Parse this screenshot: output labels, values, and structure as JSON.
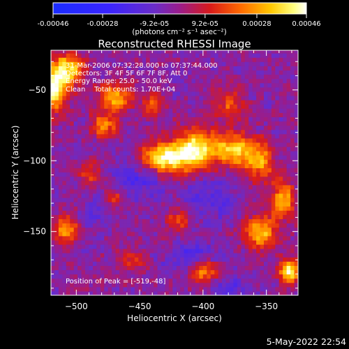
{
  "chart_data": {
    "type": "heatmap",
    "title": "Reconstructed RHESSI Image",
    "xlabel": "Heliocentric X (arcsec)",
    "ylabel": "Heliocentric Y (arcsec)",
    "xlim": [
      -520,
      -325
    ],
    "ylim": [
      -195,
      -22
    ],
    "xticks": [
      -500,
      -450,
      -400,
      -350
    ],
    "yticks": [
      -50,
      -100,
      -150
    ],
    "grid": false,
    "colorbar": {
      "position": "top",
      "range": [
        -0.00046,
        0.00046
      ],
      "tick_values": [
        -0.00046,
        -0.00028,
        -9.2e-05,
        9.2e-05,
        0.00028,
        0.00046
      ],
      "tick_labels": [
        "-0.00046",
        "-0.00028",
        "-9.2e-05",
        "9.2e-05",
        "0.00028",
        "0.00046"
      ],
      "unit_label": "(photons cm⁻² s⁻¹ asec⁻²)",
      "colormap": "blue-purple-red-yellow-white"
    },
    "annotations": [
      "31-Mar-2006 07:32:28.000 to 07:37:44.000",
      "Detectors: 3F 4F 5F 6F 7F 8F, Att 0",
      "Energy Range: 25.0 - 50.0 keV",
      "Clean    Total counts: 1.70E+04"
    ],
    "peak_text": "Position of Peak = [-519,-48]",
    "peak": {
      "x": -519,
      "y": -48
    },
    "sources": [
      {
        "x": -519,
        "y": -48,
        "sx": 8,
        "sy": 12,
        "amp": 1.0
      },
      {
        "x": -505,
        "y": -35,
        "sx": 8,
        "sy": 8,
        "amp": 0.75
      },
      {
        "x": -470,
        "y": -55,
        "sx": 9,
        "sy": 7,
        "amp": 0.7
      },
      {
        "x": -478,
        "y": -75,
        "sx": 7,
        "sy": 6,
        "amp": 0.55
      },
      {
        "x": -440,
        "y": -60,
        "sx": 6,
        "sy": 6,
        "amp": 0.45
      },
      {
        "x": -430,
        "y": -98,
        "sx": 13,
        "sy": 8,
        "amp": 0.95
      },
      {
        "x": -405,
        "y": -92,
        "sx": 12,
        "sy": 10,
        "amp": 0.9
      },
      {
        "x": -375,
        "y": -92,
        "sx": 10,
        "sy": 8,
        "amp": 0.75
      },
      {
        "x": -355,
        "y": -100,
        "sx": 8,
        "sy": 10,
        "amp": 0.6
      },
      {
        "x": -337,
        "y": -128,
        "sx": 6,
        "sy": 9,
        "amp": 0.7
      },
      {
        "x": -355,
        "y": -150,
        "sx": 9,
        "sy": 8,
        "amp": 0.75
      },
      {
        "x": -332,
        "y": -178,
        "sx": 6,
        "sy": 6,
        "amp": 0.85
      },
      {
        "x": -400,
        "y": -178,
        "sx": 9,
        "sy": 6,
        "amp": 0.6
      },
      {
        "x": -508,
        "y": -148,
        "sx": 7,
        "sy": 7,
        "amp": 0.6
      },
      {
        "x": -470,
        "y": -125,
        "sx": 6,
        "sy": 6,
        "amp": 0.35
      },
      {
        "x": -380,
        "y": -60,
        "sx": 9,
        "sy": 7,
        "amp": 0.4
      },
      {
        "x": -420,
        "y": -142,
        "sx": 7,
        "sy": 6,
        "amp": 0.4
      },
      {
        "x": -455,
        "y": -170,
        "sx": 7,
        "sy": 6,
        "amp": 0.35
      },
      {
        "x": -490,
        "y": -108,
        "sx": 6,
        "sy": 7,
        "amp": 0.35
      },
      {
        "x": -450,
        "y": -112,
        "sx": 16,
        "sy": 10,
        "amp": -0.3
      },
      {
        "x": -395,
        "y": -125,
        "sx": 14,
        "sy": 12,
        "amp": -0.25
      },
      {
        "x": -410,
        "y": -168,
        "sx": 14,
        "sy": 8,
        "amp": -0.3
      },
      {
        "x": -488,
        "y": -138,
        "sx": 8,
        "sy": 10,
        "amp": -0.2
      },
      {
        "x": -380,
        "y": -190,
        "sx": 10,
        "sy": 8,
        "amp": -0.25
      }
    ]
  },
  "footer": {
    "date": "5-May-2022 22:54"
  }
}
